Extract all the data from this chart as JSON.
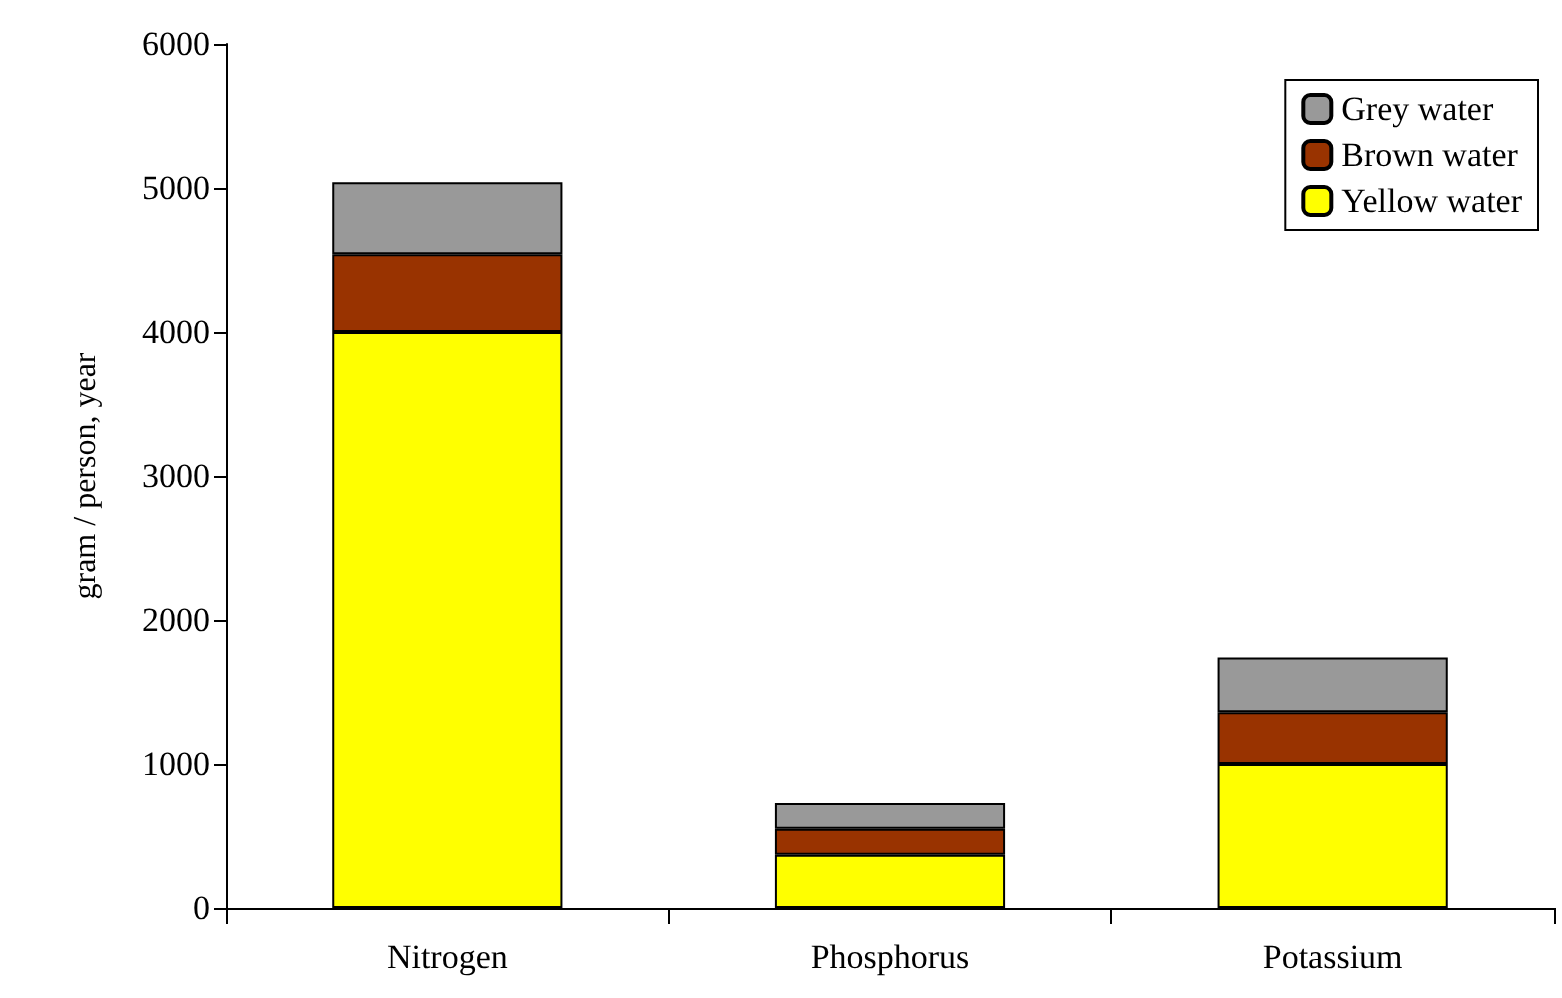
{
  "chart_data": {
    "type": "bar",
    "stacked": true,
    "ylabel": "gram / person, year",
    "categories": [
      "Nitrogen",
      "Phosphorus",
      "Potassium"
    ],
    "series": [
      {
        "name": "Yellow water",
        "color": "#ffff00",
        "values": [
          4000,
          370,
          1000
        ]
      },
      {
        "name": "Brown water",
        "color": "#993300",
        "values": [
          540,
          180,
          360
        ]
      },
      {
        "name": "Grey water",
        "color": "#999999",
        "values": [
          500,
          180,
          380
        ]
      }
    ],
    "ylim": [
      0,
      6000
    ],
    "yticks": [
      0,
      1000,
      2000,
      3000,
      4000,
      5000,
      6000
    ],
    "grid": false,
    "legend": "top right"
  }
}
